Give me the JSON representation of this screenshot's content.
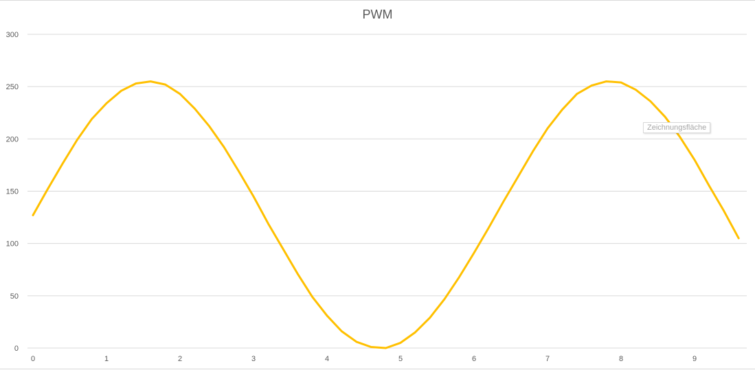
{
  "chart_data": {
    "type": "line",
    "title": "PWM",
    "xlabel": "",
    "ylabel": "",
    "ylim": [
      0,
      300
    ],
    "xlim": [
      0,
      9.6
    ],
    "y_ticks": [
      "0",
      "50",
      "100",
      "150",
      "200",
      "250",
      "300"
    ],
    "x_ticks": [
      "0",
      "1",
      "2",
      "3",
      "4",
      "5",
      "6",
      "7",
      "8",
      "9"
    ],
    "grid": true,
    "legend": "none",
    "series": [
      {
        "color": "#ffc000",
        "x": [
          0,
          0.2,
          0.4,
          0.6,
          0.8,
          1.0,
          1.2,
          1.4,
          1.6,
          1.8,
          2.0,
          2.2,
          2.4,
          2.6,
          2.8,
          3.0,
          3.2,
          3.4,
          3.6,
          3.8,
          4.0,
          4.2,
          4.4,
          4.6,
          4.8,
          5.0,
          5.2,
          5.4,
          5.6,
          5.8,
          6.0,
          6.2,
          6.4,
          6.6,
          6.8,
          7.0,
          7.2,
          7.4,
          7.6,
          7.8,
          8.0,
          8.2,
          8.4,
          8.6,
          8.8,
          9.0,
          9.2,
          9.4,
          9.6
        ],
        "values": [
          127,
          152,
          176,
          199,
          219,
          234,
          246,
          253,
          255,
          252,
          243,
          229,
          212,
          192,
          169,
          145,
          119,
          95,
          71,
          49,
          31,
          16,
          6,
          1,
          0,
          5,
          15,
          29,
          47,
          68,
          91,
          115,
          140,
          164,
          188,
          210,
          228,
          243,
          251,
          255,
          254,
          247,
          236,
          221,
          202,
          180,
          155,
          131,
          105
        ]
      }
    ]
  },
  "overlay": {
    "tooltip_text": "Zeichnungsfläche"
  }
}
